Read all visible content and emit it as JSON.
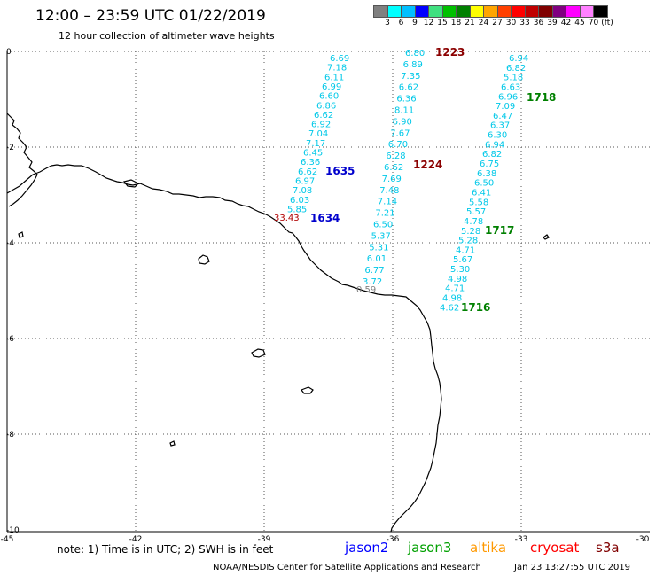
{
  "header": {
    "title": "12:00 – 23:59 UTC 01/22/2019",
    "subtitle": "12 hour collection of altimeter wave heights"
  },
  "color_scale": {
    "colors": [
      "#808080",
      "#00ffff",
      "#00bfff",
      "#0000ff",
      "#40e080",
      "#00c000",
      "#008000",
      "#ffff00",
      "#ffa500",
      "#ff4000",
      "#ff0000",
      "#c00000",
      "#800000",
      "#800080",
      "#ff00ff",
      "#ff80ff",
      "#000000"
    ],
    "labels": [
      "3",
      "6",
      "9",
      "12",
      "15",
      "18",
      "21",
      "24",
      "27",
      "30",
      "33",
      "36",
      "39",
      "42",
      "45",
      "70",
      "(ft)"
    ]
  },
  "axes": {
    "x_ticks": [
      "-45",
      "-42",
      "-39",
      "-36",
      "-33",
      "-30"
    ],
    "y_ticks": [
      "0",
      "-2",
      "-4",
      "-6",
      "-8",
      "-10"
    ]
  },
  "tracks": [
    {
      "color": "#00c8e8",
      "values": [
        "6.69",
        "7.18",
        "6.11",
        "6.99",
        "6.60",
        "6.86",
        "6.62",
        "6.92",
        "7.04",
        "7.17",
        "6.45",
        "6.36",
        "6.62",
        "6.97",
        "7.08",
        "6.03",
        "5.85"
      ]
    },
    {
      "color": "#00c8e8",
      "values": [
        "6.80",
        "6.89",
        "7.35",
        "6.62",
        "6.36",
        "8.11",
        "6.90",
        "7.67",
        "6.70",
        "6.28",
        "6.62",
        "7.69",
        "7.48",
        "7.14",
        "7.21",
        "6.50",
        "5.37",
        "5.31",
        "6.01",
        "6.77",
        "3.72"
      ]
    },
    {
      "color": "#00c8e8",
      "values": [
        "6.94",
        "6.82",
        "5.18",
        "6.63",
        "6.96",
        "7.09",
        "6.47",
        "6.37",
        "6.30",
        "6.94",
        "6.82",
        "6.75",
        "6.38",
        "6.50",
        "6.41",
        "5.58",
        "5.57",
        "4.78",
        "5.28",
        "5.28",
        "4.71",
        "5.67",
        "5.30",
        "4.98",
        "4.71",
        "4.98",
        "4.62"
      ]
    }
  ],
  "special_values": {
    "red_value": "33.43",
    "gray_value": "0.59"
  },
  "time_labels": [
    {
      "text": "1223",
      "color": "#8b0000"
    },
    {
      "text": "1635",
      "color": "#0000cd"
    },
    {
      "text": "1224",
      "color": "#8b0000"
    },
    {
      "text": "1634",
      "color": "#0000cd"
    },
    {
      "text": "1718",
      "color": "#008000"
    },
    {
      "text": "1717",
      "color": "#008000"
    },
    {
      "text": "1716",
      "color": "#008000"
    }
  ],
  "footer": {
    "note": "note:  1) Time is in UTC;  2) SWH is in feet",
    "satellites": [
      {
        "name": "jason2",
        "color": "#0000ff"
      },
      {
        "name": "jason3",
        "color": "#00a000"
      },
      {
        "name": "altika",
        "color": "#ff9900"
      },
      {
        "name": "cryosat",
        "color": "#ff0000"
      },
      {
        "name": "s3a",
        "color": "#800000"
      }
    ],
    "credit": "NOAA/NESDIS Center for Satellite Applications and Research",
    "generated": "Jan 23 13:27:55 UTC 2019"
  }
}
